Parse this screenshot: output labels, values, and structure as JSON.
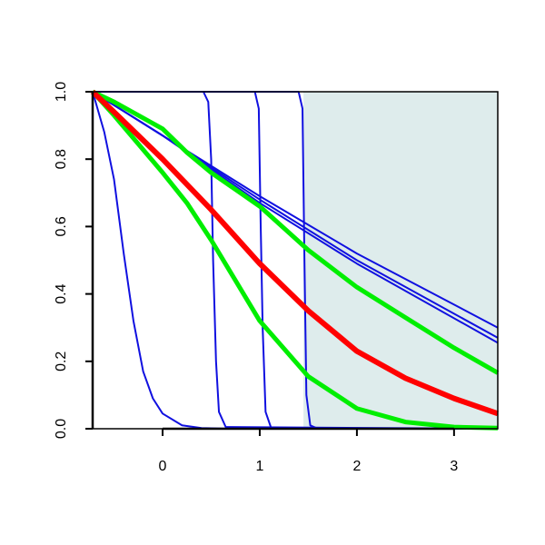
{
  "chart_data": {
    "type": "line",
    "xlim": [
      -0.72,
      3.45
    ],
    "ylim": [
      0,
      1
    ],
    "xticks": [
      0,
      1,
      2,
      3
    ],
    "yticks": [
      {
        "value": 0,
        "label": "0.0"
      },
      0.2,
      0.4,
      0.6,
      0.8,
      {
        "value": 1,
        "label": "1.0"
      }
    ],
    "shaded_region": {
      "xmin": 1.45,
      "color": "#deecec"
    },
    "series": [
      {
        "color": "#1010e0",
        "linewidth": 2,
        "x": [
          -0.72,
          0,
          0.5,
          1,
          2,
          3.45
        ],
        "values": [
          1,
          0.87,
          0.78,
          0.69,
          0.52,
          0.3
        ]
      },
      {
        "color": "#1010e0",
        "linewidth": 2,
        "x": [
          -0.72,
          0,
          0.5,
          1,
          2,
          3.45
        ],
        "values": [
          1,
          0.87,
          0.775,
          0.68,
          0.5,
          0.27
        ]
      },
      {
        "color": "#1010e0",
        "linewidth": 2,
        "x": [
          -0.72,
          0,
          0.5,
          1,
          2,
          3.45
        ],
        "values": [
          1,
          0.87,
          0.77,
          0.67,
          0.49,
          0.255
        ]
      },
      {
        "color": "#1010e0",
        "linewidth": 2,
        "x": [
          -0.72,
          -0.6,
          -0.5,
          -0.4,
          -0.3,
          -0.2,
          -0.1,
          0,
          0.2,
          0.4,
          0.7,
          3.45
        ],
        "values": [
          1,
          0.88,
          0.74,
          0.52,
          0.32,
          0.17,
          0.09,
          0.045,
          0.01,
          0.002,
          0,
          0
        ]
      },
      {
        "color": "#1010e0",
        "linewidth": 2,
        "x": [
          -0.72,
          0.42,
          0.47,
          0.5,
          0.52,
          0.55,
          0.58,
          0.65,
          3.45
        ],
        "values": [
          1,
          1,
          0.97,
          0.8,
          0.5,
          0.2,
          0.05,
          0.005,
          0
        ]
      },
      {
        "color": "#1010e0",
        "linewidth": 2,
        "x": [
          -0.72,
          0.95,
          0.99,
          1.01,
          1.03,
          1.06,
          1.12,
          3.45
        ],
        "values": [
          1,
          1,
          0.95,
          0.6,
          0.3,
          0.05,
          0,
          0
        ]
      },
      {
        "color": "#1010e0",
        "linewidth": 2,
        "x": [
          -0.72,
          1.4,
          1.44,
          1.46,
          1.48,
          1.52,
          1.6,
          3.45
        ],
        "values": [
          1,
          1,
          0.95,
          0.5,
          0.1,
          0.01,
          0,
          0
        ]
      },
      {
        "color": "#00ee00",
        "linewidth": 5,
        "x": [
          -0.72,
          -0.5,
          0,
          0.25,
          0.5,
          1,
          1.5,
          2,
          2.5,
          3,
          3.45
        ],
        "values": [
          1,
          0.97,
          0.89,
          0.82,
          0.76,
          0.66,
          0.53,
          0.42,
          0.33,
          0.24,
          0.166
        ]
      },
      {
        "color": "#00ee00",
        "linewidth": 5,
        "x": [
          -0.72,
          -0.5,
          0,
          0.25,
          0.5,
          1,
          1.5,
          2,
          2.5,
          3,
          3.45
        ],
        "values": [
          1,
          0.93,
          0.76,
          0.67,
          0.56,
          0.32,
          0.155,
          0.06,
          0.02,
          0.005,
          0.002
        ]
      },
      {
        "color": "#ff0000",
        "linewidth": 6,
        "x": [
          -0.72,
          -0.5,
          0,
          0.5,
          1,
          1.5,
          2,
          2.5,
          3,
          3.45
        ],
        "values": [
          1,
          0.94,
          0.8,
          0.65,
          0.49,
          0.35,
          0.23,
          0.15,
          0.09,
          0.045
        ]
      }
    ]
  }
}
